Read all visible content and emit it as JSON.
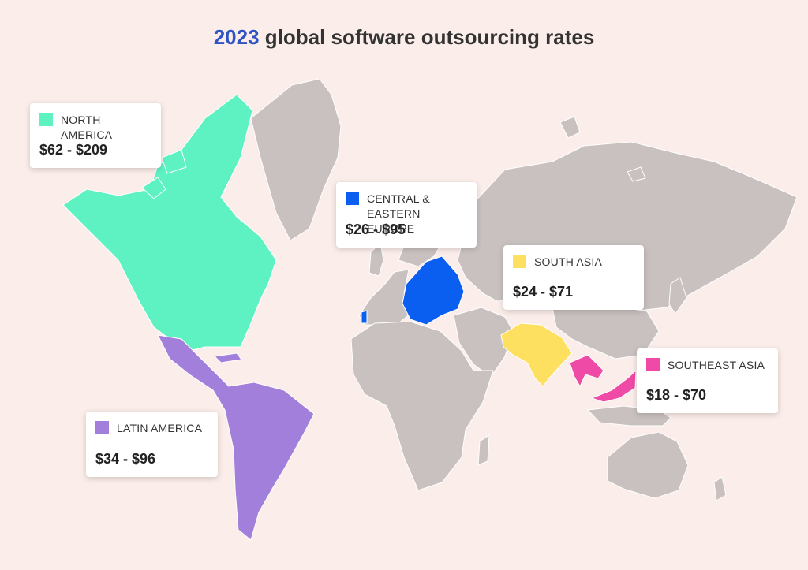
{
  "title": {
    "year": "2023",
    "text": "global software outsourcing rates"
  },
  "colors": {
    "background": "#fbede9",
    "land": "#c8c1bf",
    "north_america": "#5ef2c2",
    "latin_america": "#a27fdb",
    "europe": "#0a5ef0",
    "south_asia": "#fde05f",
    "southeast_asia": "#ee4aa6"
  },
  "regions": [
    {
      "id": "north-america",
      "name": "NORTH AMERICA",
      "range": "$62 - $209",
      "color": "#5ef2c2"
    },
    {
      "id": "central-eastern-europe",
      "name": "CENTRAL & EASTERN EUROPE",
      "range": "$26 - $95",
      "color": "#0a5ef0"
    },
    {
      "id": "south-asia",
      "name": "SOUTH ASIA",
      "range": "$24 - $71",
      "color": "#fde05f"
    },
    {
      "id": "southeast-asia",
      "name": "SOUTHEAST ASIA",
      "range": "$18 - $70",
      "color": "#ee4aa6"
    },
    {
      "id": "latin-america",
      "name": "LATIN AMERICA",
      "range": "$34 - $96",
      "color": "#a27fdb"
    }
  ]
}
